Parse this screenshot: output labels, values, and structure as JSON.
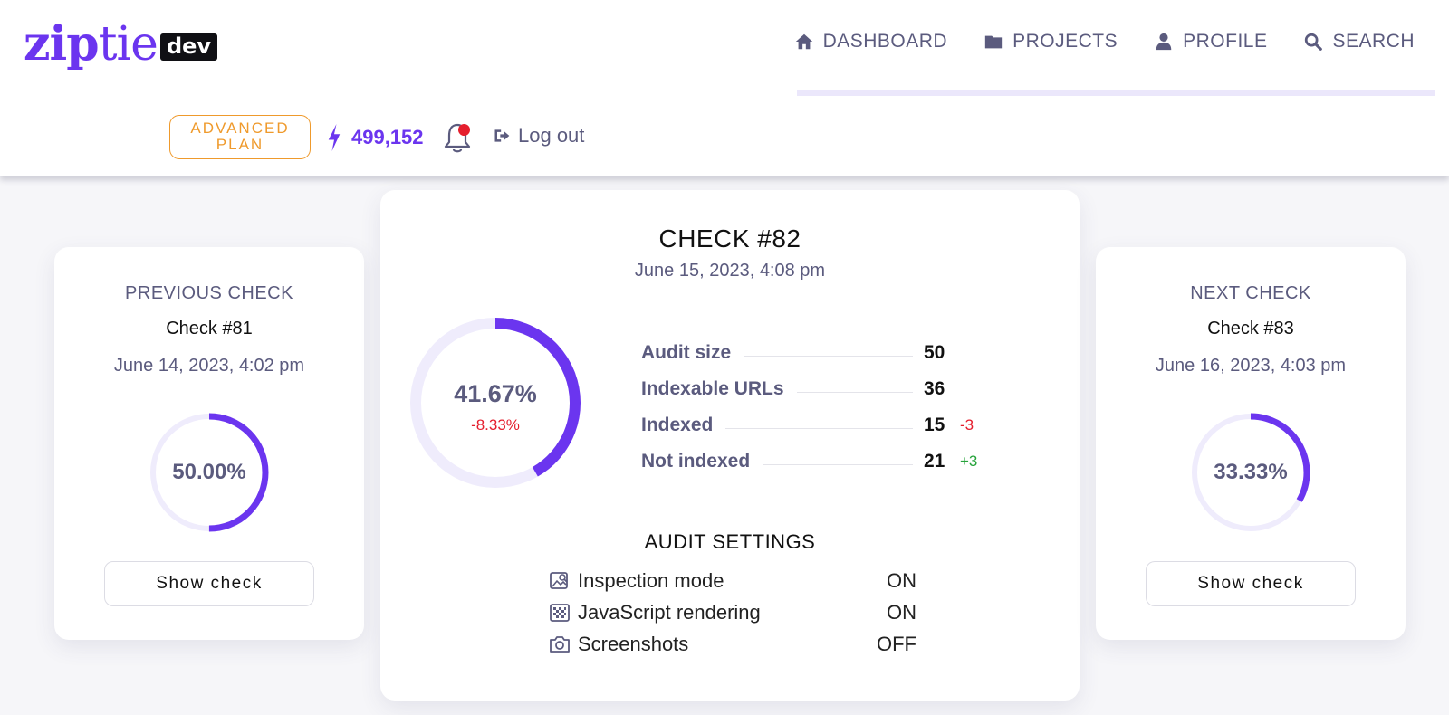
{
  "brand": {
    "logo_zip": "zip",
    "logo_tie": "tie",
    "logo_dev": "dev"
  },
  "nav": {
    "items": [
      {
        "label": "DASHBOARD",
        "icon": "home-icon"
      },
      {
        "label": "PROJECTS",
        "icon": "folder-icon"
      },
      {
        "label": "PROFILE",
        "icon": "user-icon"
      },
      {
        "label": "SEARCH",
        "icon": "search-icon"
      }
    ]
  },
  "account": {
    "plan_line1": "ADVANCED",
    "plan_line2": "PLAN",
    "credits": "499,152",
    "logout_label": "Log out"
  },
  "previous_check": {
    "heading": "PREVIOUS CHECK",
    "name": "Check #81",
    "date": "June 14, 2023, 4:02 pm",
    "percent_text": "50.00%",
    "percent": 0.5,
    "button": "Show check"
  },
  "next_check": {
    "heading": "NEXT CHECK",
    "name": "Check #83",
    "date": "June 16, 2023, 4:03 pm",
    "percent_text": "33.33%",
    "percent": 0.3333,
    "button": "Show check"
  },
  "current_check": {
    "title": "CHECK #82",
    "date": "June 15, 2023, 4:08 pm",
    "percent_text": "41.67%",
    "percent": 0.4167,
    "delta_text": "-8.33%",
    "stats": [
      {
        "label": "Audit size",
        "value": "50",
        "delta": ""
      },
      {
        "label": "Indexable URLs",
        "value": "36",
        "delta": ""
      },
      {
        "label": "Indexed",
        "value": "15",
        "delta": "-3"
      },
      {
        "label": "Not indexed",
        "value": "21",
        "delta": "+3"
      }
    ],
    "settings_title": "AUDIT SETTINGS",
    "settings": [
      {
        "label": "Inspection mode",
        "value": "ON",
        "icon": "image-search-icon"
      },
      {
        "label": "JavaScript rendering",
        "value": "ON",
        "icon": "checkerboard-icon"
      },
      {
        "label": "Screenshots",
        "value": "OFF",
        "icon": "camera-icon"
      }
    ]
  },
  "colors": {
    "accent": "#6b35ef",
    "ring_track": "#efecfc",
    "negative": "#e51e2d",
    "positive": "#26a33b",
    "plan": "#ef9a2c"
  }
}
